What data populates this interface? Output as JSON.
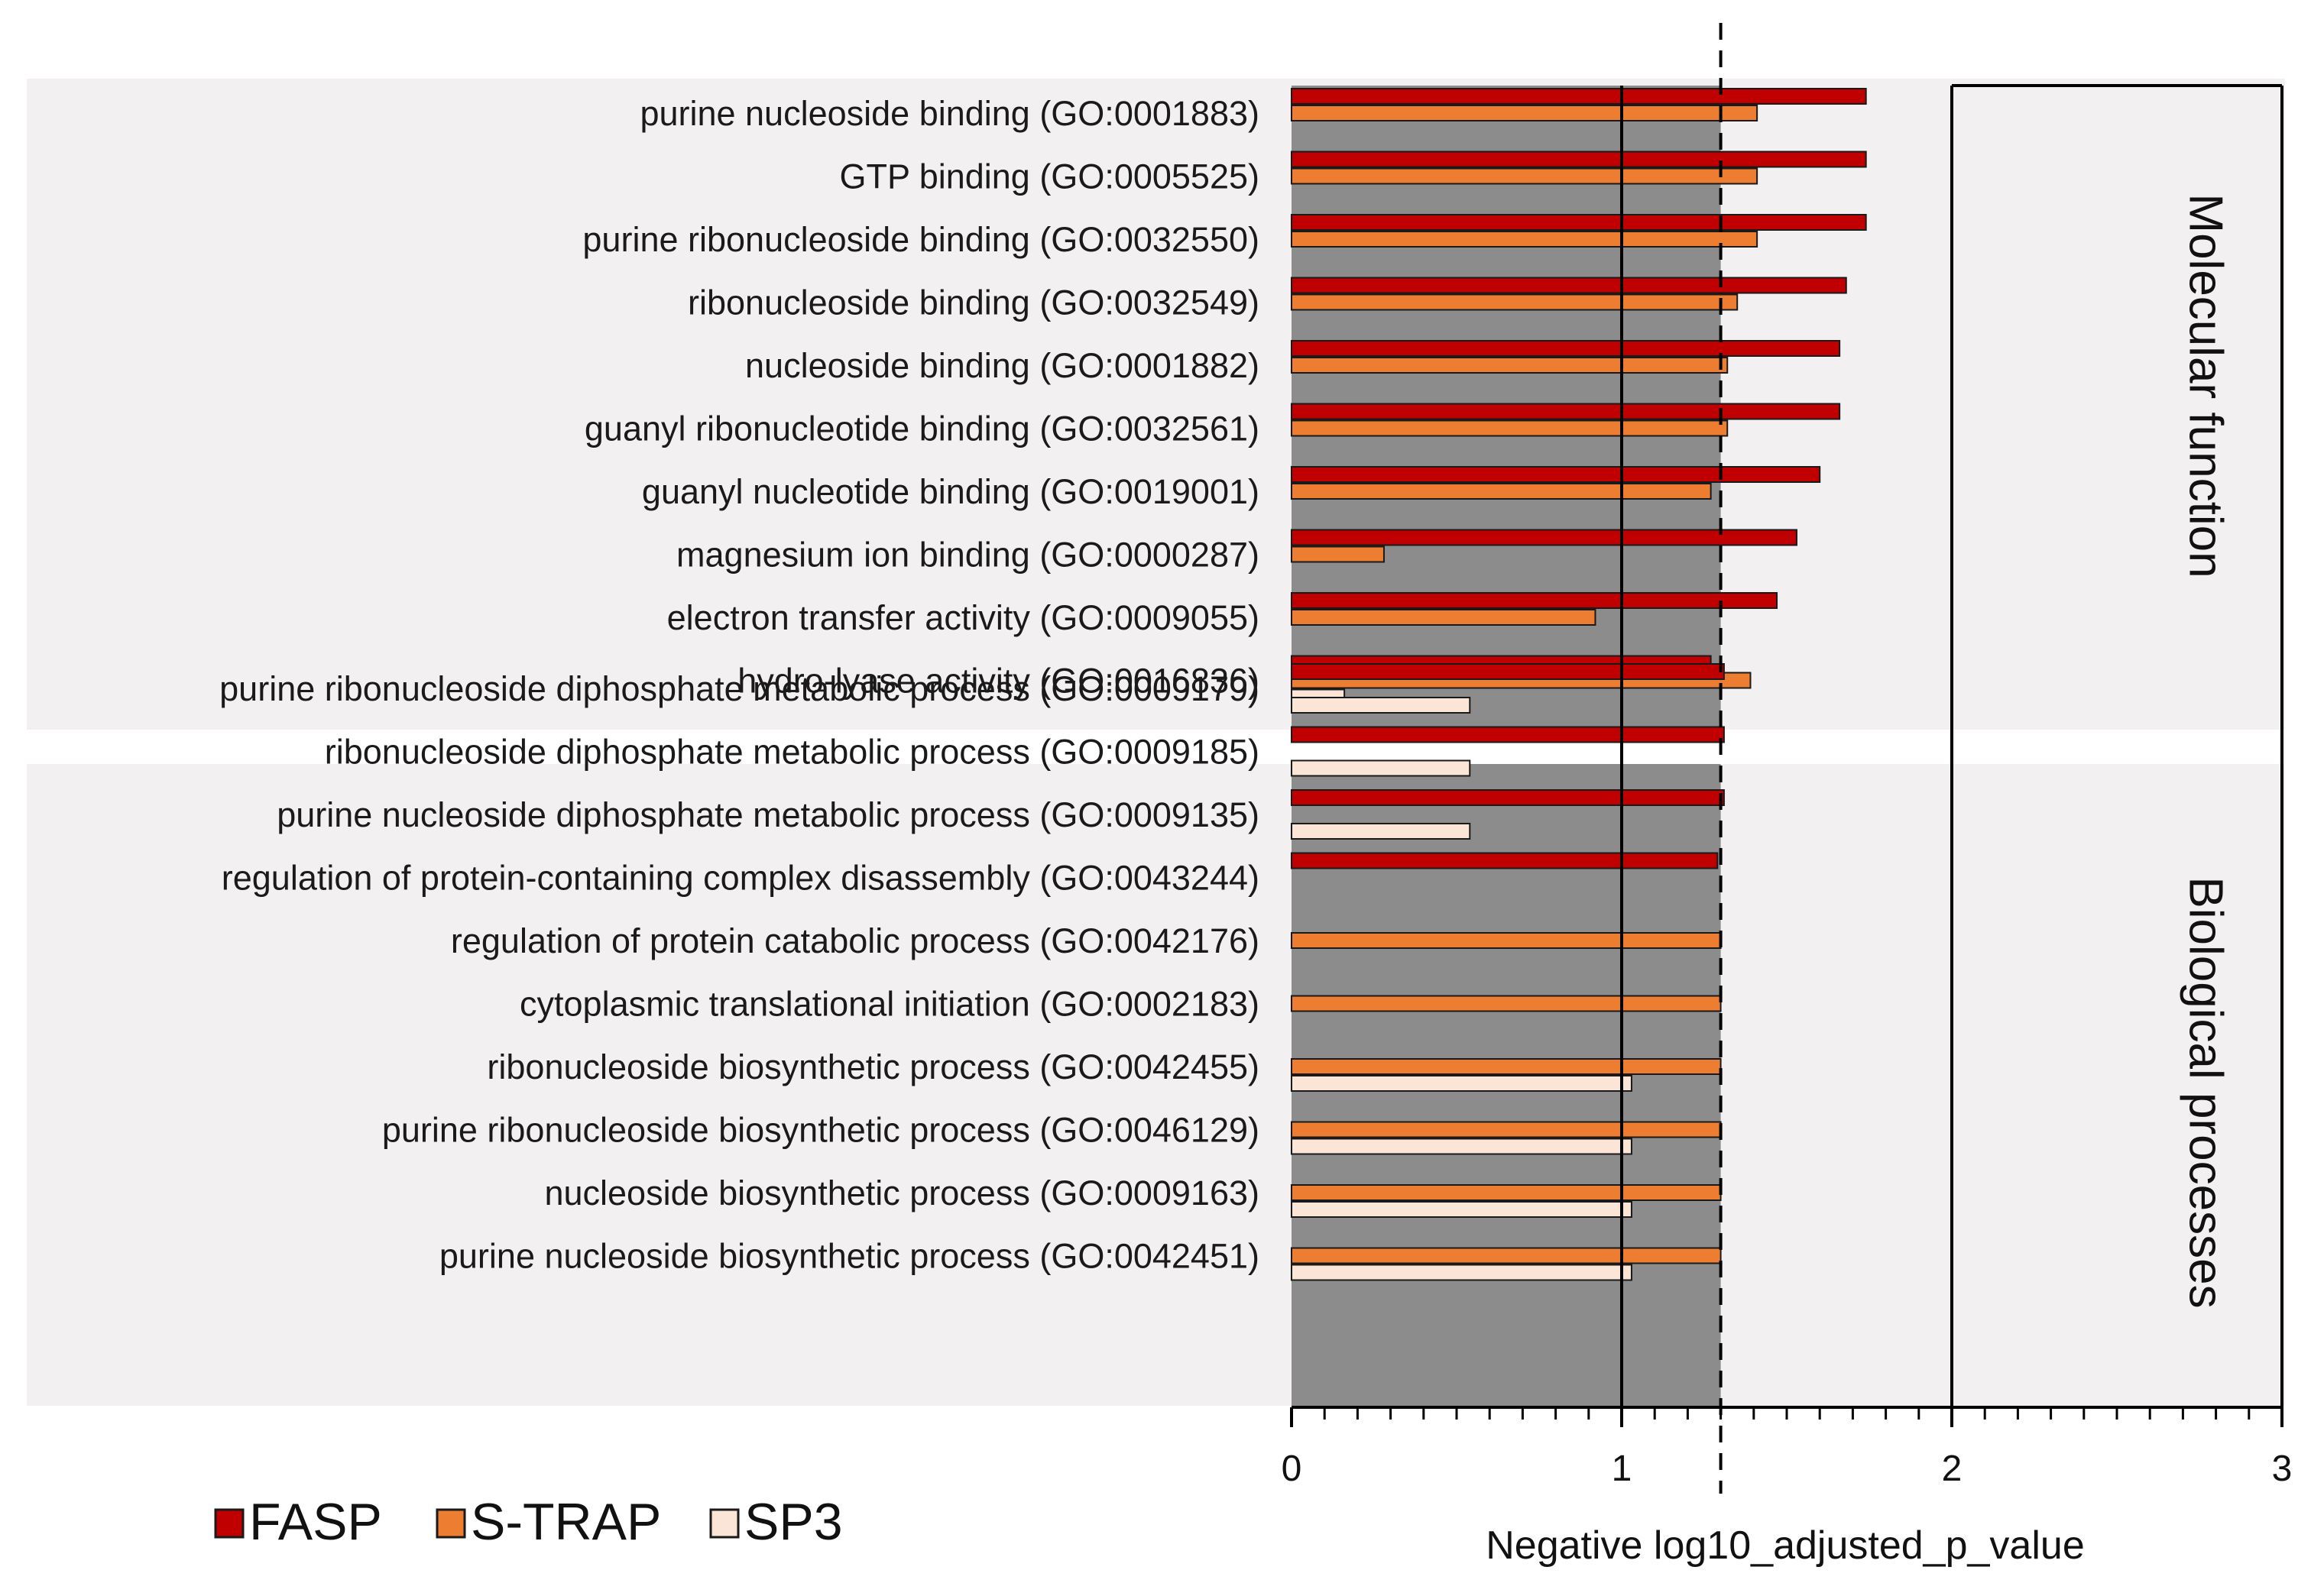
{
  "chart_data": {
    "type": "bar",
    "orientation": "horizontal",
    "xlabel": "Negative log10_adjusted_p_value",
    "xlim": [
      0,
      3
    ],
    "xticks": [
      "0",
      "1",
      "2",
      "3"
    ],
    "threshold": 1.3,
    "legend_position": "bottom-left",
    "colors": {
      "FASP": "#c00000",
      "S-TRAP": "#ed7d31",
      "SP3": "#fbe5d6"
    },
    "sections": [
      {
        "name": "Molecular function",
        "start": 0,
        "end": 9
      },
      {
        "name": "Biological processes",
        "start": 10,
        "end": 19
      }
    ],
    "categories": [
      "purine nucleoside binding (GO:0001883)",
      "GTP binding (GO:0005525)",
      "purine ribonucleoside binding (GO:0032550)",
      "ribonucleoside binding (GO:0032549)",
      "nucleoside binding (GO:0001882)",
      "guanyl ribonucleotide binding (GO:0032561)",
      "guanyl nucleotide binding (GO:0019001)",
      "magnesium ion binding (GO:0000287)",
      "electron transfer activity (GO:0009055)",
      "hydro-lyase activity (GO:0016836)",
      "purine ribonucleoside diphosphate metabolic process (GO:0009179)",
      "ribonucleoside diphosphate metabolic process (GO:0009185)",
      "purine nucleoside diphosphate metabolic process (GO:0009135)",
      "regulation of protein-containing complex disassembly (GO:0043244)",
      "regulation of protein catabolic process (GO:0042176)",
      "cytoplasmic translational initiation (GO:0002183)",
      "ribonucleoside biosynthetic process (GO:0042455)",
      "purine ribonucleoside biosynthetic process (GO:0046129)",
      "nucleoside biosynthetic process (GO:0009163)",
      "purine nucleoside biosynthetic process (GO:0042451)"
    ],
    "series": [
      {
        "name": "FASP",
        "values": [
          1.74,
          1.74,
          1.74,
          1.68,
          1.66,
          1.66,
          1.6,
          1.53,
          1.47,
          1.27,
          1.31,
          1.31,
          1.31,
          1.29,
          0,
          0,
          0,
          0,
          0,
          0
        ]
      },
      {
        "name": "S-TRAP",
        "values": [
          1.41,
          1.41,
          1.41,
          1.35,
          1.32,
          1.32,
          1.27,
          0.28,
          0.92,
          1.39,
          0,
          0,
          0,
          0,
          1.3,
          1.3,
          1.3,
          1.3,
          1.3,
          1.3
        ]
      },
      {
        "name": "SP3",
        "values": [
          0,
          0,
          0,
          0,
          0,
          0,
          0,
          0,
          0,
          0.16,
          0.54,
          0.54,
          0.54,
          0,
          0,
          0,
          1.03,
          1.03,
          1.03,
          1.03
        ]
      }
    ]
  }
}
